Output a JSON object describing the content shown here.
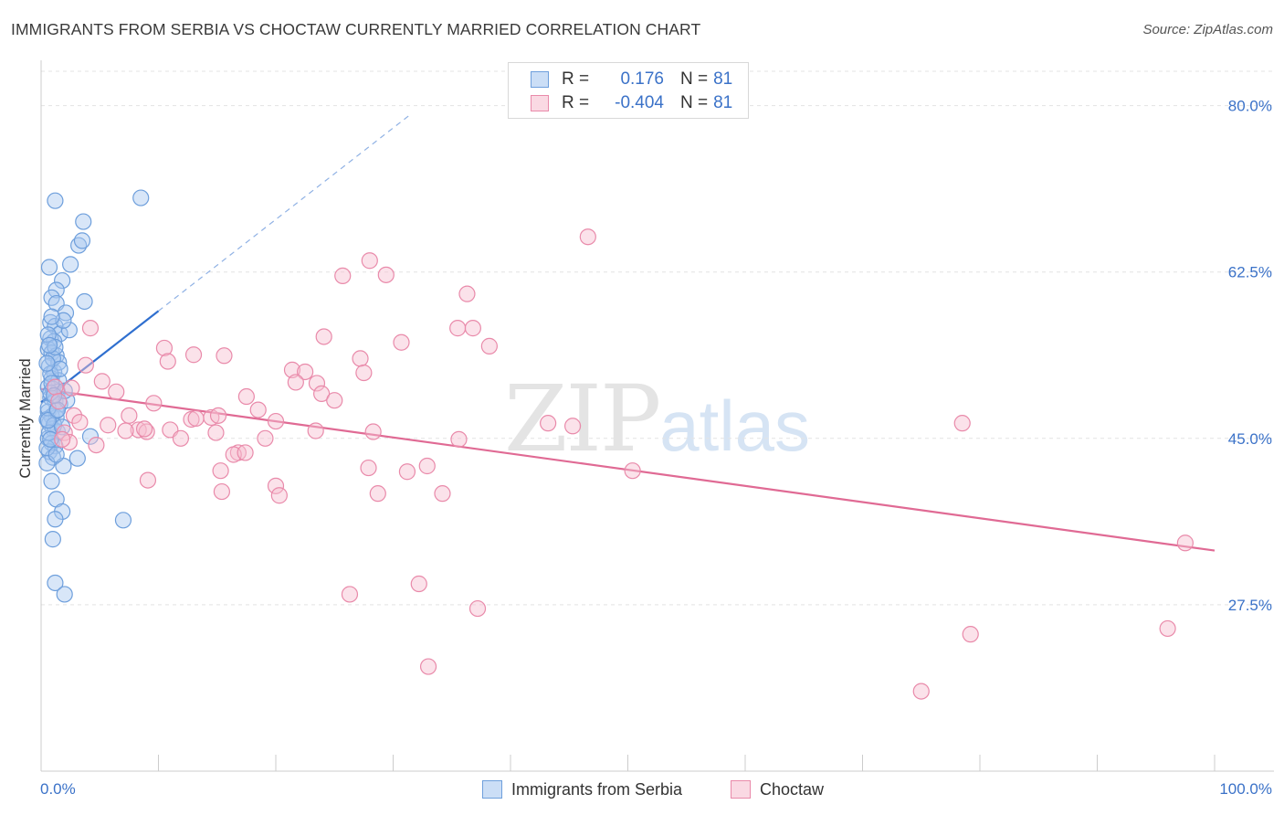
{
  "header": {
    "title": "IMMIGRANTS FROM SERBIA VS CHOCTAW CURRENTLY MARRIED CORRELATION CHART",
    "source": "Source: ZipAtlas.com"
  },
  "legend_top": {
    "rows": [
      {
        "r_label": "R =",
        "r_value": "0.176",
        "n_label": "N =",
        "n_value": "81"
      },
      {
        "r_label": "R =",
        "r_value": "-0.404",
        "n_label": "N =",
        "n_value": "81"
      }
    ]
  },
  "watermark": {
    "zip": "ZIP",
    "atlas": "atlas"
  },
  "colors": {
    "serbia_fill": "#a9c8f0",
    "serbia_stroke": "#6e9fdc",
    "serbia_line": "#2f6fcf",
    "choctaw_fill": "#f6bfd0",
    "choctaw_stroke": "#e98aaa",
    "choctaw_line": "#e06a94",
    "tick_label": "#3b72c8",
    "grid": "#e3e3e3"
  },
  "chart_data": {
    "type": "scatter",
    "title": "IMMIGRANTS FROM SERBIA VS CHOCTAW CURRENTLY MARRIED CORRELATION CHART",
    "xlabel": "",
    "ylabel": "Currently Married",
    "xlim": [
      0,
      100
    ],
    "ylim": [
      10,
      84
    ],
    "x_tick_labels": [
      "0.0%",
      "100.0%"
    ],
    "y_ticks": [
      27.5,
      45.0,
      62.5,
      80.0
    ],
    "y_tick_labels": [
      "27.5%",
      "45.0%",
      "62.5%",
      "80.0%"
    ],
    "grid": true,
    "legend_position": "top-center",
    "series": [
      {
        "name": "Immigrants from Serbia",
        "r": 0.176,
        "n": 81,
        "trend": {
          "x": [
            0.0,
            10.0
          ],
          "y": [
            48.8,
            58.4
          ],
          "dashed_extension": {
            "x": [
              10.0,
              31.4
            ],
            "y": [
              58.4,
              79.0
            ]
          }
        },
        "points": [
          [
            1.2,
            70.0
          ],
          [
            3.6,
            67.8
          ],
          [
            8.5,
            70.3
          ],
          [
            3.2,
            65.3
          ],
          [
            3.5,
            65.8
          ],
          [
            0.7,
            63.0
          ],
          [
            2.5,
            63.3
          ],
          [
            1.8,
            61.6
          ],
          [
            1.3,
            60.6
          ],
          [
            0.9,
            59.8
          ],
          [
            1.3,
            59.2
          ],
          [
            2.1,
            58.2
          ],
          [
            3.7,
            59.4
          ],
          [
            0.8,
            57.2
          ],
          [
            1.2,
            56.8
          ],
          [
            1.6,
            56.0
          ],
          [
            0.8,
            55.5
          ],
          [
            1.1,
            55.2
          ],
          [
            2.4,
            56.4
          ],
          [
            0.6,
            54.4
          ],
          [
            0.9,
            54.0
          ],
          [
            1.3,
            53.7
          ],
          [
            0.7,
            52.6
          ],
          [
            1.1,
            52.0
          ],
          [
            0.9,
            51.3
          ],
          [
            1.5,
            51.1
          ],
          [
            0.6,
            50.4
          ],
          [
            1.0,
            50.2
          ],
          [
            1.4,
            49.9
          ],
          [
            0.8,
            49.3
          ],
          [
            1.2,
            48.9
          ],
          [
            1.6,
            48.6
          ],
          [
            0.6,
            47.8
          ],
          [
            0.9,
            47.3
          ],
          [
            1.3,
            47.2
          ],
          [
            0.7,
            46.6
          ],
          [
            1.0,
            46.0
          ],
          [
            1.4,
            45.7
          ],
          [
            0.6,
            45.0
          ],
          [
            0.9,
            44.5
          ],
          [
            1.2,
            44.2
          ],
          [
            0.7,
            43.6
          ],
          [
            1.0,
            43.0
          ],
          [
            0.5,
            42.4
          ],
          [
            1.9,
            42.1
          ],
          [
            0.9,
            40.5
          ],
          [
            3.1,
            42.9
          ],
          [
            4.2,
            45.2
          ],
          [
            1.3,
            38.6
          ],
          [
            1.8,
            37.3
          ],
          [
            1.2,
            36.5
          ],
          [
            7.0,
            36.4
          ],
          [
            1.0,
            34.4
          ],
          [
            1.2,
            29.8
          ],
          [
            2.0,
            28.6
          ],
          [
            0.5,
            47.0
          ],
          [
            0.8,
            49.8
          ],
          [
            1.5,
            53.0
          ],
          [
            0.6,
            55.9
          ],
          [
            1.9,
            57.4
          ],
          [
            1.1,
            46.4
          ],
          [
            0.5,
            44.0
          ],
          [
            0.8,
            51.8
          ],
          [
            1.3,
            47.9
          ],
          [
            2.2,
            49.0
          ],
          [
            0.6,
            48.2
          ],
          [
            1.0,
            53.4
          ],
          [
            0.7,
            45.6
          ],
          [
            1.6,
            52.3
          ],
          [
            0.9,
            50.8
          ],
          [
            1.2,
            54.6
          ],
          [
            0.6,
            46.9
          ],
          [
            2.0,
            50.0
          ],
          [
            0.8,
            44.9
          ],
          [
            1.4,
            48.0
          ],
          [
            0.5,
            52.9
          ],
          [
            1.1,
            49.5
          ],
          [
            0.7,
            54.8
          ],
          [
            1.8,
            46.2
          ],
          [
            0.9,
            57.8
          ],
          [
            1.3,
            43.3
          ]
        ]
      },
      {
        "name": "Choctaw",
        "r": -0.404,
        "n": 81,
        "trend": {
          "x": [
            0.0,
            100.0
          ],
          "y": [
            50.2,
            33.2
          ]
        },
        "points": [
          [
            46.6,
            66.2
          ],
          [
            25.7,
            62.1
          ],
          [
            28.0,
            63.7
          ],
          [
            29.4,
            62.2
          ],
          [
            36.3,
            60.2
          ],
          [
            4.2,
            56.6
          ],
          [
            24.1,
            55.7
          ],
          [
            30.7,
            55.1
          ],
          [
            35.5,
            56.6
          ],
          [
            36.8,
            56.6
          ],
          [
            38.2,
            54.7
          ],
          [
            10.5,
            54.5
          ],
          [
            10.8,
            53.1
          ],
          [
            13.0,
            53.8
          ],
          [
            15.6,
            53.7
          ],
          [
            27.2,
            53.4
          ],
          [
            3.8,
            52.7
          ],
          [
            21.4,
            52.2
          ],
          [
            22.5,
            52.0
          ],
          [
            27.5,
            51.9
          ],
          [
            5.2,
            51.0
          ],
          [
            21.7,
            50.9
          ],
          [
            23.5,
            50.8
          ],
          [
            1.2,
            50.4
          ],
          [
            2.6,
            50.3
          ],
          [
            6.4,
            49.9
          ],
          [
            17.5,
            49.4
          ],
          [
            23.9,
            49.7
          ],
          [
            25.0,
            49.0
          ],
          [
            1.5,
            48.9
          ],
          [
            9.6,
            48.7
          ],
          [
            18.5,
            48.0
          ],
          [
            2.8,
            47.4
          ],
          [
            7.5,
            47.4
          ],
          [
            12.8,
            47.0
          ],
          [
            14.5,
            47.2
          ],
          [
            15.1,
            47.4
          ],
          [
            13.2,
            47.1
          ],
          [
            20.0,
            46.8
          ],
          [
            43.2,
            46.6
          ],
          [
            45.3,
            46.3
          ],
          [
            78.5,
            46.6
          ],
          [
            5.7,
            46.4
          ],
          [
            8.3,
            45.9
          ],
          [
            9.0,
            45.7
          ],
          [
            7.2,
            45.8
          ],
          [
            8.8,
            46.0
          ],
          [
            11.0,
            45.9
          ],
          [
            14.9,
            45.6
          ],
          [
            23.4,
            45.8
          ],
          [
            28.3,
            45.7
          ],
          [
            2.0,
            45.6
          ],
          [
            2.4,
            44.6
          ],
          [
            11.9,
            45.0
          ],
          [
            19.1,
            45.0
          ],
          [
            35.6,
            44.9
          ],
          [
            4.7,
            44.3
          ],
          [
            16.8,
            43.5
          ],
          [
            16.4,
            43.3
          ],
          [
            17.4,
            43.5
          ],
          [
            15.3,
            41.6
          ],
          [
            27.9,
            41.9
          ],
          [
            31.2,
            41.5
          ],
          [
            32.9,
            42.1
          ],
          [
            50.4,
            41.6
          ],
          [
            9.1,
            40.6
          ],
          [
            20.0,
            40.0
          ],
          [
            15.4,
            39.4
          ],
          [
            20.3,
            39.0
          ],
          [
            28.7,
            39.2
          ],
          [
            34.2,
            39.2
          ],
          [
            97.5,
            34.0
          ],
          [
            26.3,
            28.6
          ],
          [
            32.2,
            29.7
          ],
          [
            37.2,
            27.1
          ],
          [
            79.2,
            24.4
          ],
          [
            96.0,
            25.0
          ],
          [
            33.0,
            21.0
          ],
          [
            75.0,
            18.4
          ],
          [
            1.8,
            44.9
          ],
          [
            3.3,
            46.7
          ]
        ]
      }
    ]
  },
  "bottom_legend": {
    "items": [
      {
        "label": "Immigrants from Serbia"
      },
      {
        "label": "Choctaw"
      }
    ]
  }
}
